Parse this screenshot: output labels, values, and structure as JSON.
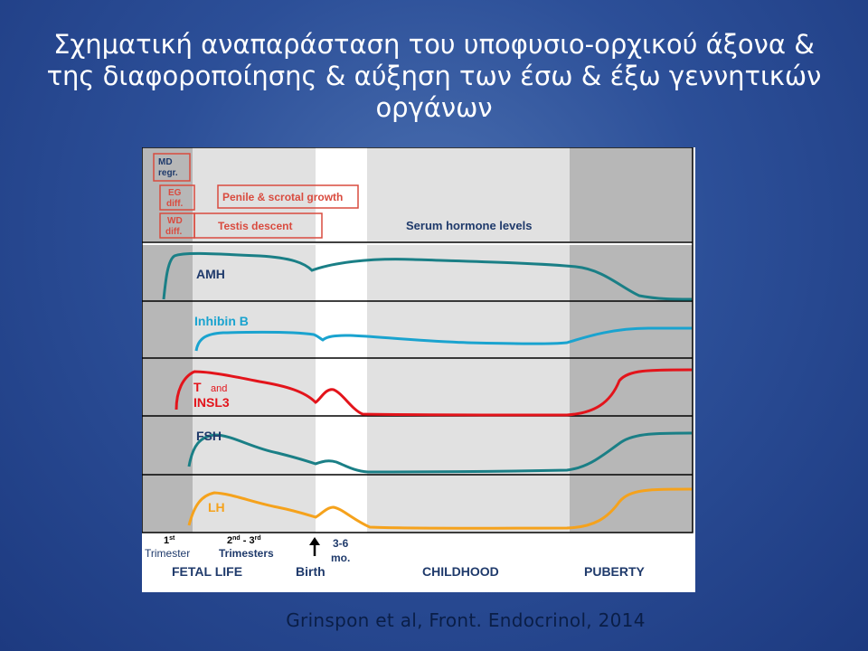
{
  "title": {
    "line1": "Σχηματική αναπαράσταση του υποφυσιο-ορχικού άξονα &",
    "line2": "της διαφοροποίησης & αύξηση των έσω & έξω γεννητικών",
    "line3": "οργάνων"
  },
  "figure": {
    "boxes": {
      "md": [
        "MD",
        "regr."
      ],
      "eg": [
        "EG",
        "diff."
      ],
      "wd": [
        "WD",
        "diff."
      ],
      "penile": "Penile & scrotal growth",
      "testis": "Testis descent"
    },
    "serum_label": "Serum  hormone levels",
    "hormones": [
      {
        "key": "amh",
        "label": "AMH",
        "color": "#1a7f86"
      },
      {
        "key": "inhibin",
        "label": "Inhibin B",
        "color": "#1aa3cf"
      },
      {
        "key": "t_insl3",
        "label_main": "T",
        "label_and": "and",
        "label_sub": "INSL3",
        "color": "#e3141b"
      },
      {
        "key": "fsh",
        "label": "FSH",
        "color": "#1a7f86"
      },
      {
        "key": "lh",
        "label": "LH",
        "color": "#f5a21c"
      }
    ],
    "timeline": {
      "t1_num": "1",
      "t1_sup": "st",
      "t1_word": "Trimester",
      "t2_a": "2",
      "t2_a_sup": "nd",
      "t2_dash": " - 3",
      "t2_b_sup": "rd",
      "t2_word": "Trimesters",
      "mo_num": "3-6",
      "mo_word": "mo.",
      "fetal_life": "FETAL LIFE",
      "birth": "Birth",
      "childhood": "CHILDHOOD",
      "puberty": "PUBERTY"
    },
    "colors": {
      "box_border": "#d94b3f",
      "box_text": "#d94b3f",
      "axis_text": "#1f3a6b",
      "shade_dark": "#b7b7b7",
      "shade_light": "#e1e1e1"
    }
  },
  "citation": "Grinspon et al, Front. Endocrinol, 2014"
}
